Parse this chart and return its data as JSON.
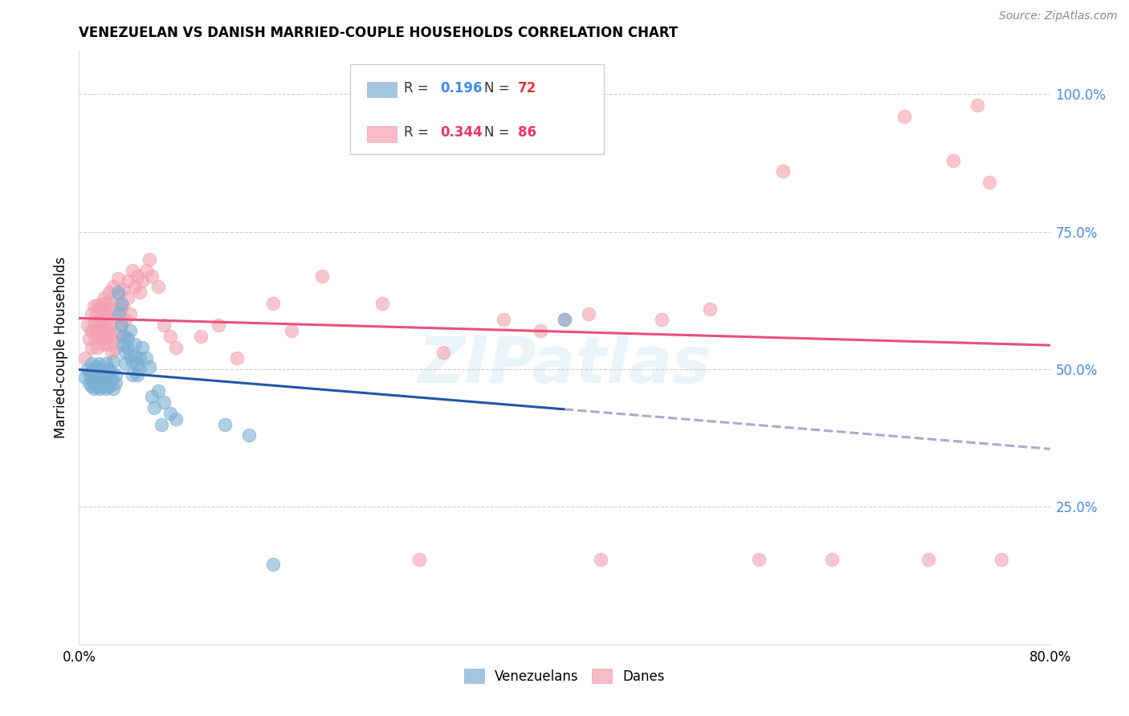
{
  "title": "VENEZUELAN VS DANISH MARRIED-COUPLE HOUSEHOLDS CORRELATION CHART",
  "source": "Source: ZipAtlas.com",
  "ylabel": "Married-couple Households",
  "xlim": [
    0.0,
    0.8
  ],
  "ylim": [
    0.0,
    1.08
  ],
  "ytick_values": [
    0.25,
    0.5,
    0.75,
    1.0
  ],
  "ytick_labels": [
    "25.0%",
    "50.0%",
    "75.0%",
    "100.0%"
  ],
  "venezuelan_color": "#7BAFD4",
  "danish_color": "#F4A0B0",
  "trend_venezuelan_color": "#2255AA",
  "trend_danish_color": "#E8507A",
  "trend_dashed_color": "#AAAACC",
  "watermark": "ZIPatlas",
  "background_color": "#FFFFFF",
  "venezuelan_points": [
    [
      0.005,
      0.485
    ],
    [
      0.007,
      0.5
    ],
    [
      0.008,
      0.475
    ],
    [
      0.009,
      0.49
    ],
    [
      0.01,
      0.47
    ],
    [
      0.01,
      0.495
    ],
    [
      0.01,
      0.51
    ],
    [
      0.011,
      0.48
    ],
    [
      0.012,
      0.465
    ],
    [
      0.012,
      0.5
    ],
    [
      0.013,
      0.49
    ],
    [
      0.013,
      0.475
    ],
    [
      0.014,
      0.485
    ],
    [
      0.014,
      0.505
    ],
    [
      0.015,
      0.47
    ],
    [
      0.015,
      0.495
    ],
    [
      0.016,
      0.48
    ],
    [
      0.016,
      0.51
    ],
    [
      0.017,
      0.465
    ],
    [
      0.017,
      0.49
    ],
    [
      0.018,
      0.475
    ],
    [
      0.018,
      0.5
    ],
    [
      0.019,
      0.485
    ],
    [
      0.02,
      0.47
    ],
    [
      0.02,
      0.495
    ],
    [
      0.021,
      0.48
    ],
    [
      0.022,
      0.51
    ],
    [
      0.022,
      0.465
    ],
    [
      0.023,
      0.49
    ],
    [
      0.023,
      0.475
    ],
    [
      0.024,
      0.5
    ],
    [
      0.025,
      0.485
    ],
    [
      0.025,
      0.47
    ],
    [
      0.026,
      0.495
    ],
    [
      0.027,
      0.48
    ],
    [
      0.028,
      0.515
    ],
    [
      0.028,
      0.465
    ],
    [
      0.03,
      0.49
    ],
    [
      0.03,
      0.475
    ],
    [
      0.032,
      0.64
    ],
    [
      0.033,
      0.6
    ],
    [
      0.035,
      0.62
    ],
    [
      0.035,
      0.58
    ],
    [
      0.036,
      0.56
    ],
    [
      0.036,
      0.545
    ],
    [
      0.038,
      0.53
    ],
    [
      0.038,
      0.51
    ],
    [
      0.04,
      0.555
    ],
    [
      0.04,
      0.54
    ],
    [
      0.042,
      0.57
    ],
    [
      0.042,
      0.525
    ],
    [
      0.044,
      0.515
    ],
    [
      0.044,
      0.49
    ],
    [
      0.046,
      0.545
    ],
    [
      0.046,
      0.525
    ],
    [
      0.048,
      0.51
    ],
    [
      0.048,
      0.49
    ],
    [
      0.05,
      0.52
    ],
    [
      0.05,
      0.5
    ],
    [
      0.052,
      0.54
    ],
    [
      0.055,
      0.52
    ],
    [
      0.058,
      0.505
    ],
    [
      0.06,
      0.45
    ],
    [
      0.062,
      0.43
    ],
    [
      0.065,
      0.46
    ],
    [
      0.068,
      0.4
    ],
    [
      0.07,
      0.44
    ],
    [
      0.075,
      0.42
    ],
    [
      0.08,
      0.41
    ],
    [
      0.12,
      0.4
    ],
    [
      0.14,
      0.38
    ],
    [
      0.16,
      0.145
    ],
    [
      0.4,
      0.59
    ]
  ],
  "danish_points": [
    [
      0.005,
      0.52
    ],
    [
      0.007,
      0.58
    ],
    [
      0.008,
      0.555
    ],
    [
      0.01,
      0.6
    ],
    [
      0.01,
      0.57
    ],
    [
      0.01,
      0.54
    ],
    [
      0.012,
      0.615
    ],
    [
      0.012,
      0.585
    ],
    [
      0.013,
      0.56
    ],
    [
      0.014,
      0.6
    ],
    [
      0.014,
      0.57
    ],
    [
      0.015,
      0.54
    ],
    [
      0.015,
      0.615
    ],
    [
      0.016,
      0.585
    ],
    [
      0.016,
      0.56
    ],
    [
      0.017,
      0.61
    ],
    [
      0.017,
      0.575
    ],
    [
      0.018,
      0.555
    ],
    [
      0.018,
      0.62
    ],
    [
      0.019,
      0.59
    ],
    [
      0.02,
      0.57
    ],
    [
      0.02,
      0.545
    ],
    [
      0.021,
      0.63
    ],
    [
      0.021,
      0.605
    ],
    [
      0.022,
      0.58
    ],
    [
      0.022,
      0.555
    ],
    [
      0.023,
      0.62
    ],
    [
      0.023,
      0.595
    ],
    [
      0.024,
      0.57
    ],
    [
      0.024,
      0.545
    ],
    [
      0.025,
      0.64
    ],
    [
      0.025,
      0.61
    ],
    [
      0.026,
      0.585
    ],
    [
      0.026,
      0.56
    ],
    [
      0.027,
      0.53
    ],
    [
      0.028,
      0.65
    ],
    [
      0.028,
      0.62
    ],
    [
      0.03,
      0.595
    ],
    [
      0.03,
      0.565
    ],
    [
      0.03,
      0.54
    ],
    [
      0.032,
      0.665
    ],
    [
      0.032,
      0.635
    ],
    [
      0.034,
      0.61
    ],
    [
      0.034,
      0.58
    ],
    [
      0.036,
      0.645
    ],
    [
      0.036,
      0.615
    ],
    [
      0.038,
      0.59
    ],
    [
      0.038,
      0.56
    ],
    [
      0.04,
      0.66
    ],
    [
      0.04,
      0.63
    ],
    [
      0.042,
      0.6
    ],
    [
      0.044,
      0.68
    ],
    [
      0.046,
      0.65
    ],
    [
      0.048,
      0.67
    ],
    [
      0.05,
      0.64
    ],
    [
      0.052,
      0.66
    ],
    [
      0.055,
      0.68
    ],
    [
      0.058,
      0.7
    ],
    [
      0.06,
      0.67
    ],
    [
      0.065,
      0.65
    ],
    [
      0.07,
      0.58
    ],
    [
      0.075,
      0.56
    ],
    [
      0.08,
      0.54
    ],
    [
      0.1,
      0.56
    ],
    [
      0.115,
      0.58
    ],
    [
      0.13,
      0.52
    ],
    [
      0.16,
      0.62
    ],
    [
      0.175,
      0.57
    ],
    [
      0.2,
      0.67
    ],
    [
      0.25,
      0.62
    ],
    [
      0.28,
      0.155
    ],
    [
      0.3,
      0.53
    ],
    [
      0.35,
      0.59
    ],
    [
      0.38,
      0.57
    ],
    [
      0.4,
      0.59
    ],
    [
      0.42,
      0.6
    ],
    [
      0.43,
      0.155
    ],
    [
      0.48,
      0.59
    ],
    [
      0.52,
      0.61
    ],
    [
      0.56,
      0.155
    ],
    [
      0.58,
      0.86
    ],
    [
      0.62,
      0.155
    ],
    [
      0.68,
      0.96
    ],
    [
      0.7,
      0.155
    ],
    [
      0.72,
      0.88
    ],
    [
      0.74,
      0.98
    ],
    [
      0.75,
      0.84
    ],
    [
      0.76,
      0.155
    ]
  ]
}
